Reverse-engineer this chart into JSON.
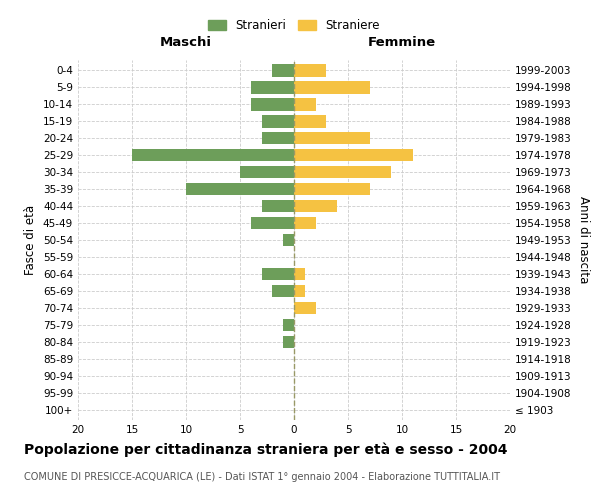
{
  "age_groups": [
    "100+",
    "95-99",
    "90-94",
    "85-89",
    "80-84",
    "75-79",
    "70-74",
    "65-69",
    "60-64",
    "55-59",
    "50-54",
    "45-49",
    "40-44",
    "35-39",
    "30-34",
    "25-29",
    "20-24",
    "15-19",
    "10-14",
    "5-9",
    "0-4"
  ],
  "birth_years": [
    "≤ 1903",
    "1904-1908",
    "1909-1913",
    "1914-1918",
    "1919-1923",
    "1924-1928",
    "1929-1933",
    "1934-1938",
    "1939-1943",
    "1944-1948",
    "1949-1953",
    "1954-1958",
    "1959-1963",
    "1964-1968",
    "1969-1973",
    "1974-1978",
    "1979-1983",
    "1984-1988",
    "1989-1993",
    "1994-1998",
    "1999-2003"
  ],
  "males": [
    0,
    0,
    0,
    0,
    1,
    1,
    0,
    2,
    3,
    0,
    1,
    4,
    3,
    10,
    5,
    15,
    3,
    3,
    4,
    4,
    2
  ],
  "females": [
    0,
    0,
    0,
    0,
    0,
    0,
    2,
    1,
    1,
    0,
    0,
    2,
    4,
    7,
    9,
    11,
    7,
    3,
    2,
    7,
    3
  ],
  "male_color": "#6d9e5a",
  "female_color": "#f5c242",
  "xlim": 20,
  "title": "Popolazione per cittadinanza straniera per età e sesso - 2004",
  "subtitle": "COMUNE DI PRESICCE-ACQUARICA (LE) - Dati ISTAT 1° gennaio 2004 - Elaborazione TUTTITALIA.IT",
  "ylabel_left": "Fasce di età",
  "ylabel_right": "Anni di nascita",
  "maschi_label": "Maschi",
  "femmine_label": "Femmine",
  "legend_stranieri": "Stranieri",
  "legend_straniere": "Straniere",
  "bg_color": "#ffffff",
  "grid_color": "#cccccc",
  "dashed_color": "#999966",
  "bar_height": 0.75,
  "tick_fontsize": 7.5,
  "title_fontsize": 10,
  "subtitle_fontsize": 7
}
